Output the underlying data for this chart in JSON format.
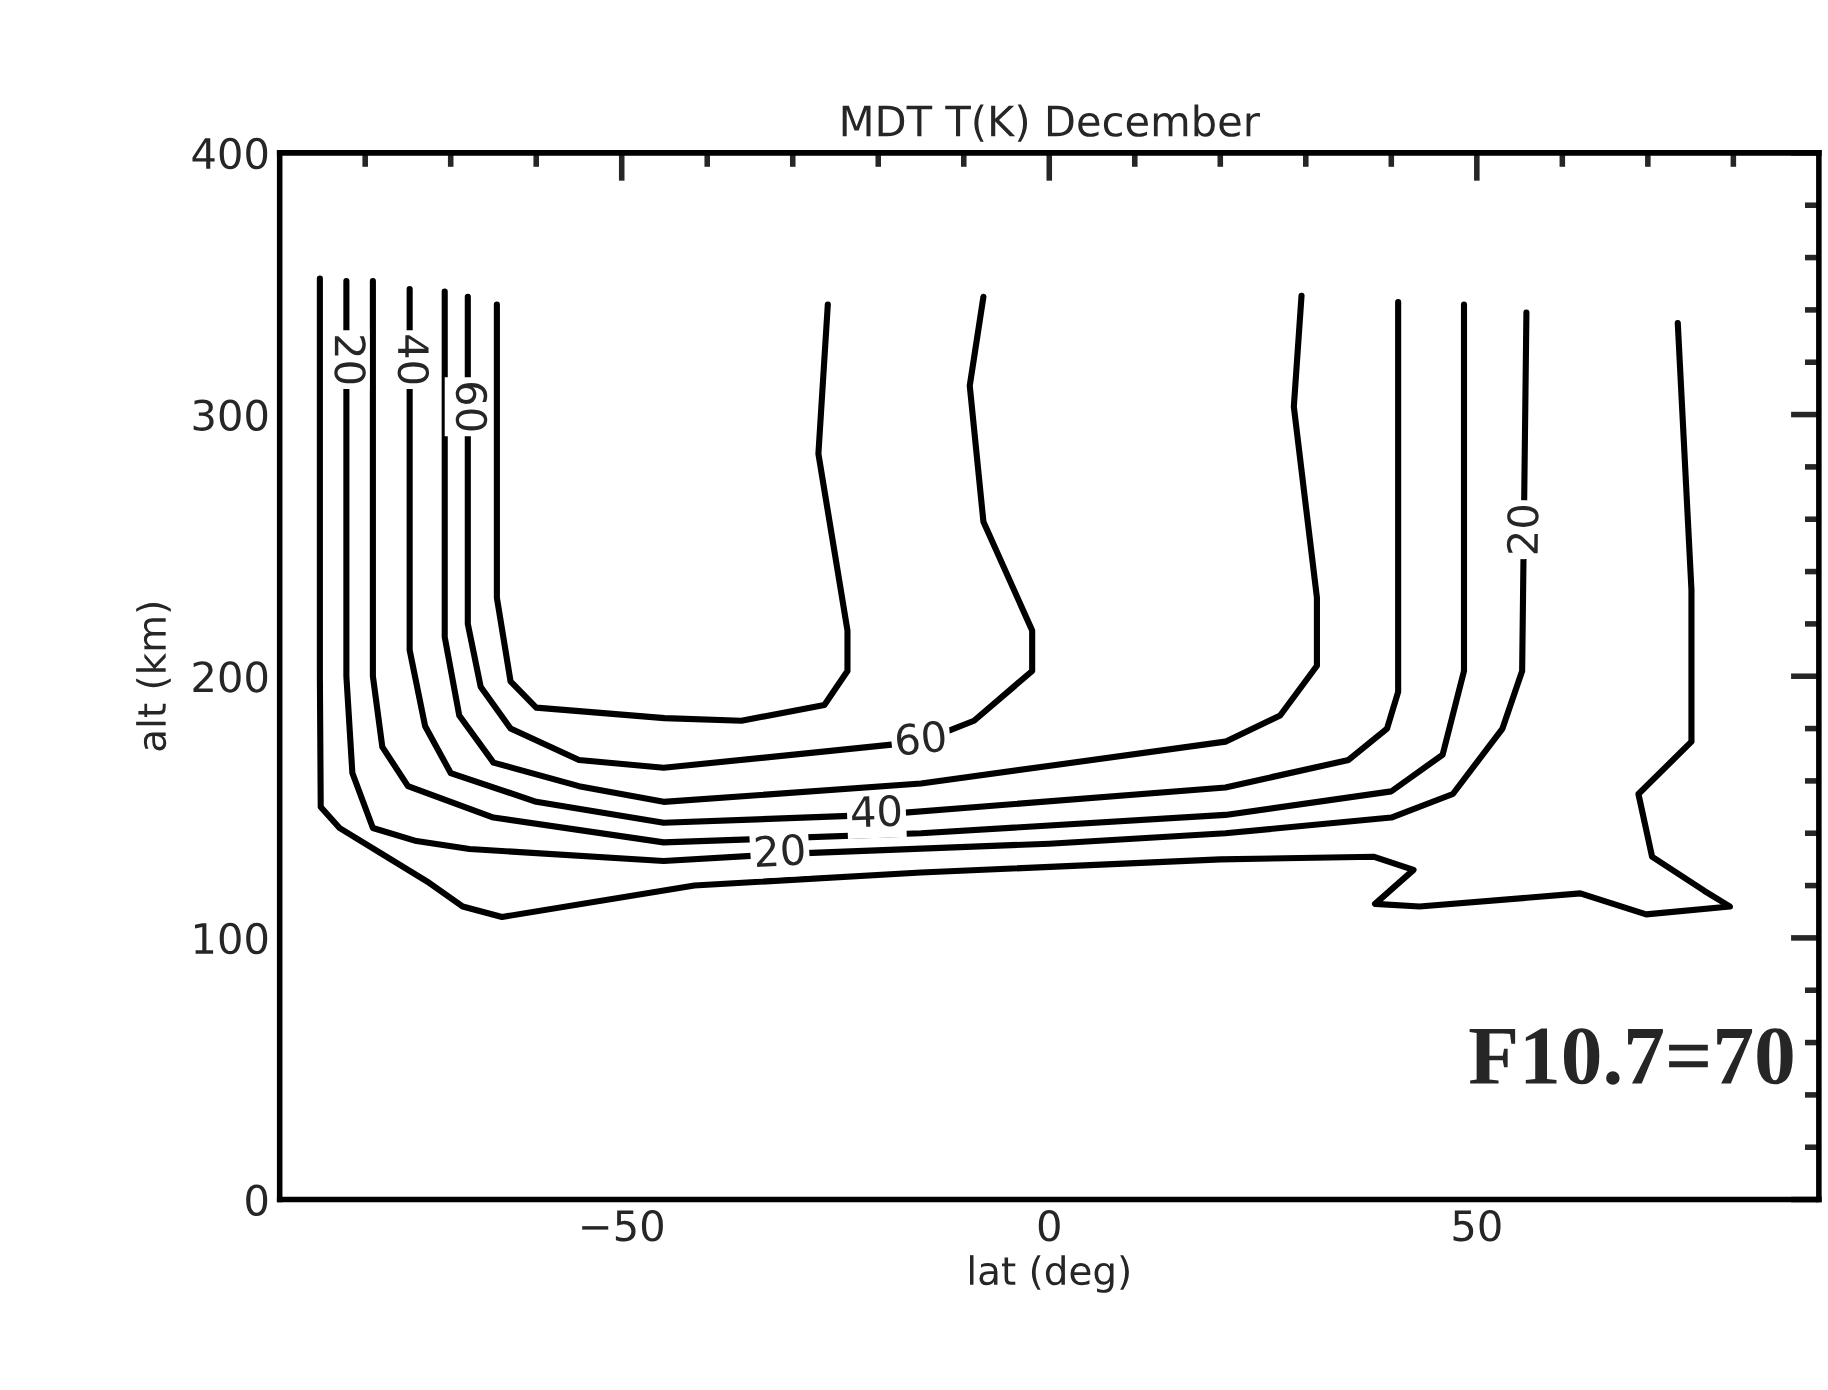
{
  "chart_data": {
    "type": "line",
    "title": "MDT T(K) December",
    "xlabel": "lat (deg)",
    "ylabel": "alt (km)",
    "xlim": [
      -90,
      90
    ],
    "ylim": [
      0,
      400
    ],
    "xticks": [
      {
        "value": -80,
        "label": null
      },
      {
        "value": -70,
        "label": null
      },
      {
        "value": -60,
        "label": null
      },
      -50,
      {
        "value": -40,
        "label": null
      },
      {
        "value": -30,
        "label": null
      },
      {
        "value": -20,
        "label": null
      },
      {
        "value": -10,
        "label": null
      },
      0,
      {
        "value": 10,
        "label": null
      },
      {
        "value": 20,
        "label": null
      },
      {
        "value": 30,
        "label": null
      },
      {
        "value": 40,
        "label": null
      },
      50,
      {
        "value": 60,
        "label": null
      },
      {
        "value": 70,
        "label": null
      },
      {
        "value": 80,
        "label": null
      }
    ],
    "yticks": [
      0,
      {
        "value": 20,
        "label": null
      },
      {
        "value": 40,
        "label": null
      },
      {
        "value": 60,
        "label": null
      },
      {
        "value": 80,
        "label": null
      },
      100,
      {
        "value": 120,
        "label": null
      },
      {
        "value": 140,
        "label": null
      },
      {
        "value": 160,
        "label": null
      },
      {
        "value": 180,
        "label": null
      },
      200,
      {
        "value": 220,
        "label": null
      },
      {
        "value": 240,
        "label": null
      },
      {
        "value": 260,
        "label": null
      },
      {
        "value": 280,
        "label": null
      },
      300,
      {
        "value": 320,
        "label": null
      },
      {
        "value": 340,
        "label": null
      },
      {
        "value": 360,
        "label": null
      },
      {
        "value": 380,
        "label": null
      },
      400
    ],
    "grid": false,
    "legend": false,
    "marker": "none",
    "line_style": "solid",
    "series": [
      {
        "color": "#000000",
        "x": [
          -85.3,
          -85.3,
          -85.2,
          -83,
          -78,
          -72.5,
          -68.6,
          -64,
          -41.5,
          -15,
          20,
          38,
          42.6,
          38.1,
          43.3,
          62.1,
          69.8,
          79.6,
          76.6,
          70.5,
          68.9,
          75.1,
          75.1,
          73.5
        ],
        "values": [
          352,
          200,
          150,
          142,
          132,
          121,
          112,
          108,
          120,
          125,
          130,
          131,
          126,
          113,
          112,
          117,
          109,
          112,
          118,
          131,
          155,
          175,
          233,
          335
        ]
      },
      {
        "color": "#000000",
        "x": [
          -82.2,
          -82.2,
          -81.5,
          -79.1,
          -74,
          -67.8,
          -45.1,
          -31.5,
          0,
          20.6,
          40,
          47.2,
          53,
          55.3,
          55.8
        ],
        "values": [
          351,
          200,
          163,
          142,
          137,
          134,
          129.4,
          132,
          136,
          140,
          146,
          155,
          180,
          202,
          339
        ]
      },
      {
        "color": "#000000",
        "x": [
          -79.1,
          -79.1,
          -78,
          -75,
          -65,
          -45.1,
          -15,
          20.6,
          40,
          46,
          48.5,
          48.5
        ],
        "values": [
          351,
          200,
          173,
          158,
          146,
          136.5,
          140,
          147,
          156,
          170,
          202,
          342
        ]
      },
      {
        "color": "#000000",
        "x": [
          -74.8,
          -74.8,
          -73,
          -70,
          -60,
          -45.1,
          -20.2,
          20.6,
          35,
          39.5,
          40.8,
          40.8
        ],
        "values": [
          348,
          210,
          181,
          163,
          152,
          144,
          147,
          157.5,
          168,
          180,
          194,
          343
        ]
      },
      {
        "color": "#000000",
        "x": [
          -70.7,
          -70.7,
          -69,
          -65,
          -55,
          -45.1,
          -15,
          20.6,
          27,
          31.3,
          31.3,
          28.6,
          29.5
        ],
        "values": [
          347,
          215,
          185,
          167,
          158,
          152,
          159,
          175,
          185,
          204,
          230,
          303,
          345.4
        ]
      },
      {
        "color": "#000000",
        "x": [
          -68,
          -68,
          -66.5,
          -63,
          -55,
          -45.1,
          -15,
          -8.8,
          -2,
          -2,
          -7.7,
          -9.3,
          -7.7
        ],
        "values": [
          345,
          220,
          196,
          180,
          168,
          165,
          175,
          183,
          202,
          217.5,
          259,
          311,
          345
        ]
      },
      {
        "color": "#000000",
        "x": [
          -64.6,
          -64.6,
          -63,
          -60,
          -45,
          -36,
          -26.3,
          -23.6,
          -23.6,
          -27,
          -25.9
        ],
        "values": [
          342,
          230,
          198,
          188,
          184,
          183,
          189,
          202,
          217.5,
          285,
          342
        ]
      }
    ],
    "annotations": [
      {
        "text": "20",
        "x": -82.2,
        "y": 321
      },
      {
        "text": "40",
        "x": -74.8,
        "y": 321
      },
      {
        "text": "60",
        "x": -68,
        "y": 303
      },
      {
        "text": "60",
        "x": -15,
        "y": 175
      },
      {
        "text": "40",
        "x": -20.2,
        "y": 147
      },
      {
        "text": "20",
        "x": -31.5,
        "y": 132
      },
      {
        "text": "20",
        "x": 55.8,
        "y": 256
      },
      "F10.7=70"
    ]
  }
}
